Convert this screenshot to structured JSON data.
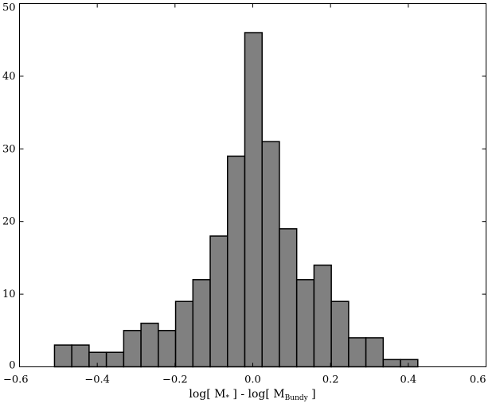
{
  "chart_data": {
    "type": "bar",
    "title": "",
    "xlabel": {
      "prefix": "log[ M",
      "sub1": "*",
      "middle": " ] - log[ M",
      "sub2": "Bundy",
      "suffix": " ]"
    },
    "ylabel": "",
    "xlim": [
      -0.6,
      0.6
    ],
    "ylim": [
      0,
      50
    ],
    "xticks": [
      -0.6,
      -0.4,
      -0.2,
      0.0,
      0.2,
      0.4,
      0.6
    ],
    "xtick_labels": [
      "−0.6",
      "−0.4",
      "−0.2",
      "0.0",
      "0.2",
      "0.4",
      "0.6"
    ],
    "yticks": [
      0,
      10,
      20,
      30,
      40,
      50
    ],
    "ytick_labels": [
      "0",
      "10",
      "20",
      "30",
      "40",
      "50"
    ],
    "grid": false,
    "bar_color": "#808080",
    "bin_edges": [
      -0.51,
      -0.4655,
      -0.421,
      -0.3765,
      -0.332,
      -0.2875,
      -0.243,
      -0.1985,
      -0.154,
      -0.1095,
      -0.065,
      -0.0205,
      0.024,
      0.0685,
      0.113,
      0.1575,
      0.202,
      0.2465,
      0.291,
      0.3355,
      0.38,
      0.4245
    ],
    "counts": [
      3,
      3,
      2,
      2,
      5,
      6,
      5,
      9,
      12,
      18,
      29,
      46,
      31,
      19,
      12,
      14,
      9,
      4,
      4,
      1,
      1
    ]
  }
}
